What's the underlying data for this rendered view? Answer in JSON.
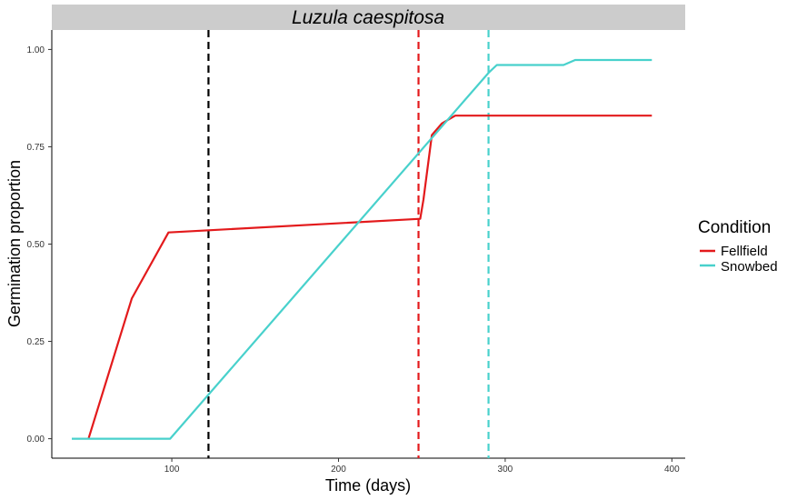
{
  "chart_data": {
    "type": "line",
    "title": "Luzula caespitosa",
    "xlabel": "Time (days)",
    "ylabel": "Germination proportion",
    "xlim": [
      28,
      408
    ],
    "ylim": [
      -0.05,
      1.05
    ],
    "x_ticks": [
      100,
      200,
      300,
      400
    ],
    "y_ticks": [
      0.0,
      0.25,
      0.5,
      0.75,
      1.0
    ],
    "y_tick_labels": [
      "0.00",
      "0.25",
      "0.50",
      "0.75",
      "1.00"
    ],
    "grid": false,
    "legend": {
      "title": "Condition",
      "position": "right"
    },
    "series": [
      {
        "name": "Fellfield",
        "color": "#e31a1c",
        "points": [
          [
            50,
            0.0
          ],
          [
            76,
            0.36
          ],
          [
            98,
            0.53
          ],
          [
            249,
            0.565
          ],
          [
            251,
            0.615
          ],
          [
            256,
            0.78
          ],
          [
            262,
            0.81
          ],
          [
            270,
            0.83
          ],
          [
            388,
            0.83
          ]
        ]
      },
      {
        "name": "Snowbed",
        "color": "#48d1cc",
        "points": [
          [
            40,
            0.0
          ],
          [
            99,
            0.0
          ],
          [
            290,
            0.94
          ],
          [
            295,
            0.96
          ],
          [
            335,
            0.96
          ],
          [
            342,
            0.973
          ],
          [
            388,
            0.973
          ]
        ]
      }
    ],
    "vlines": [
      {
        "x": 122,
        "color": "#000000"
      },
      {
        "x": 248,
        "color": "#e31a1c"
      },
      {
        "x": 290,
        "color": "#48d1cc"
      }
    ]
  }
}
